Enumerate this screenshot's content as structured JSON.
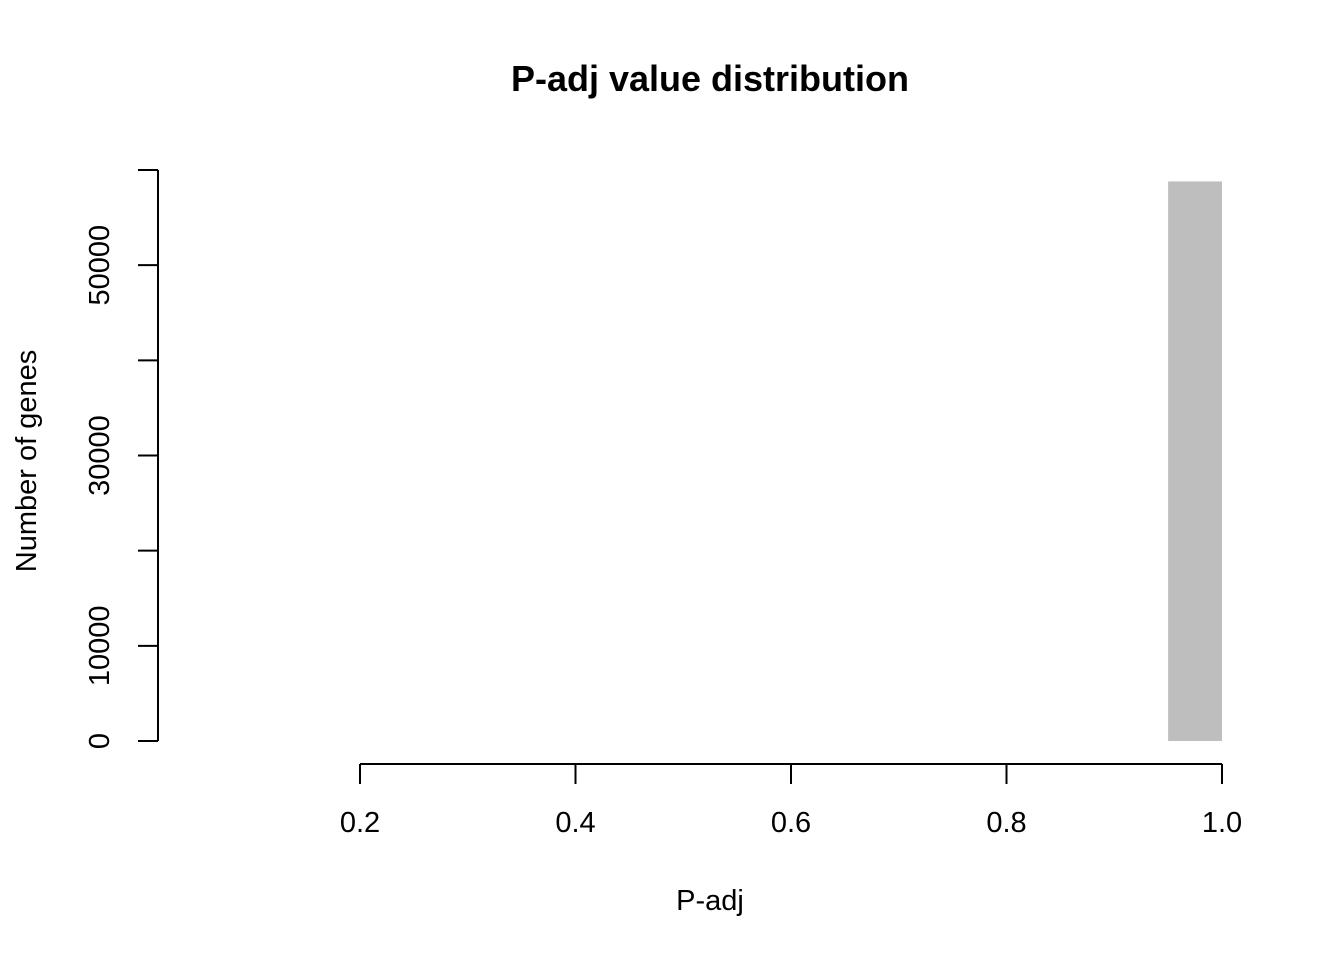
{
  "chart_data": {
    "type": "bar",
    "title": "P-adj value distribution",
    "xlabel": "P-adj",
    "ylabel": "Number of genes",
    "bins": [
      {
        "x0": 0.95,
        "x1": 1.0,
        "count": 58800
      }
    ],
    "xlim": [
      0.2,
      1.0
    ],
    "ylim": [
      0,
      60000
    ],
    "x_ticks": [
      0.2,
      0.4,
      0.6,
      0.8,
      1.0
    ],
    "x_tick_labels": [
      "0.2",
      "0.4",
      "0.6",
      "0.8",
      "1.0"
    ],
    "y_ticks": [
      0,
      10000,
      20000,
      30000,
      40000,
      50000,
      60000
    ],
    "y_tick_labels": [
      "0",
      "10000",
      "",
      "30000",
      "",
      "50000",
      ""
    ],
    "grid": false,
    "legend": "none",
    "colors": {
      "bar": "#bebebe",
      "axis": "#000000"
    }
  }
}
